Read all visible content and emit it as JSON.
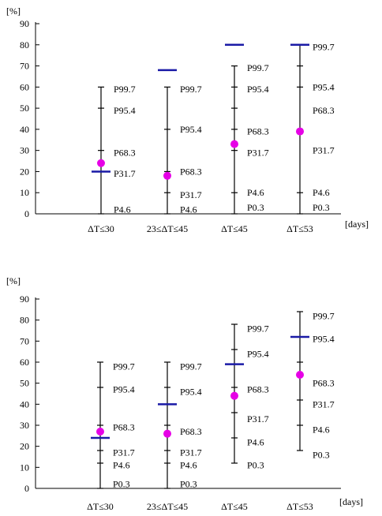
{
  "chart_data": [
    {
      "type": "scatter",
      "title": "",
      "ylabel": "[%]",
      "xlabel": "[days]",
      "ylim": [
        0,
        90
      ],
      "yticks": [
        "0",
        "10",
        "20",
        "30",
        "40",
        "50",
        "60",
        "70",
        "80",
        "90"
      ],
      "categories": [
        "ΔT≤30",
        "23≤ΔT≤45",
        "ΔT≤45",
        "ΔT≤53"
      ],
      "colors": {
        "marker": "#e600e6",
        "threshold": "#1a1aa6",
        "axis": "#000000"
      },
      "groups": [
        {
          "category": "ΔT≤30",
          "point": 24,
          "bar": 20,
          "ticks": [
            0,
            20,
            30,
            50,
            60
          ],
          "labels": [
            {
              "text": "P99.7",
              "y": 59
            },
            {
              "text": "P95.4",
              "y": 49
            },
            {
              "text": "P68.3",
              "y": 29
            },
            {
              "text": "P31.7",
              "y": 19
            },
            {
              "text": "P4.6",
              "y": 2
            }
          ]
        },
        {
          "category": "23≤ΔT≤45",
          "point": 18,
          "bar": 68,
          "ticks": [
            0,
            10,
            20,
            40,
            60
          ],
          "labels": [
            {
              "text": "P99.7",
              "y": 59
            },
            {
              "text": "P95.4",
              "y": 40
            },
            {
              "text": "P68.3",
              "y": 20
            },
            {
              "text": "P31.7",
              "y": 9
            },
            {
              "text": "P4.6",
              "y": 2
            }
          ]
        },
        {
          "category": "ΔT≤45",
          "point": 33,
          "bar": 80,
          "ticks": [
            0,
            10,
            30,
            40,
            50,
            60,
            70
          ],
          "labels": [
            {
              "text": "P99.7",
              "y": 69
            },
            {
              "text": "P95.4",
              "y": 59
            },
            {
              "text": "P68.3",
              "y": 39
            },
            {
              "text": "P31.7",
              "y": 29
            },
            {
              "text": "P4.6",
              "y": 10
            },
            {
              "text": "P0.3",
              "y": 3
            }
          ]
        },
        {
          "category": "ΔT≤53",
          "point": 39,
          "bar": 80,
          "ticks": [
            0,
            10,
            40,
            60,
            70,
            80
          ],
          "labels": [
            {
              "text": "P99.7",
              "y": 79
            },
            {
              "text": "P95.4",
              "y": 60
            },
            {
              "text": "P68.3",
              "y": 49
            },
            {
              "text": "P31.7",
              "y": 30
            },
            {
              "text": "P4.6",
              "y": 10
            },
            {
              "text": "P0.3",
              "y": 3
            }
          ]
        }
      ]
    },
    {
      "type": "scatter",
      "title": "",
      "ylabel": "[%]",
      "xlabel": "[days]",
      "ylim": [
        0,
        90
      ],
      "yticks": [
        "0",
        "10",
        "20",
        "30",
        "40",
        "50",
        "60",
        "70",
        "80",
        "90"
      ],
      "categories": [
        "ΔT≤30",
        "23≤ΔT≤45",
        "ΔT≤45",
        "ΔT≤53"
      ],
      "colors": {
        "marker": "#e600e6",
        "threshold": "#1a1aa6",
        "axis": "#000000"
      },
      "groups": [
        {
          "category": "ΔT≤30",
          "point": 27,
          "bar": 24,
          "ticks": [
            0,
            12,
            18,
            30,
            48,
            60
          ],
          "labels": [
            {
              "text": "P99.7",
              "y": 58
            },
            {
              "text": "P95.4",
              "y": 47
            },
            {
              "text": "P68.3",
              "y": 29
            },
            {
              "text": "P31.7",
              "y": 17
            },
            {
              "text": "P4.6",
              "y": 11
            },
            {
              "text": "P0.3",
              "y": 2
            }
          ]
        },
        {
          "category": "23≤ΔT≤45",
          "point": 26,
          "bar": 40,
          "ticks": [
            0,
            12,
            18,
            30,
            48,
            60
          ],
          "labels": [
            {
              "text": "P99.7",
              "y": 58
            },
            {
              "text": "P95.4",
              "y": 46
            },
            {
              "text": "P68.3",
              "y": 27
            },
            {
              "text": "P31.7",
              "y": 17
            },
            {
              "text": "P4.6",
              "y": 11
            },
            {
              "text": "P0.3",
              "y": 2
            }
          ]
        },
        {
          "category": "ΔT≤45",
          "point": 44,
          "bar": 59,
          "ticks": [
            12,
            24,
            36,
            48,
            66,
            78
          ],
          "labels": [
            {
              "text": "P99.7",
              "y": 76
            },
            {
              "text": "P95.4",
              "y": 64
            },
            {
              "text": "P68.3",
              "y": 47
            },
            {
              "text": "P31.7",
              "y": 33
            },
            {
              "text": "P4.6",
              "y": 22
            },
            {
              "text": "P0.3",
              "y": 11
            }
          ]
        },
        {
          "category": "ΔT≤53",
          "point": 54,
          "bar": 72,
          "ticks": [
            18,
            30,
            42,
            60,
            84
          ],
          "labels": [
            {
              "text": "P99.7",
              "y": 82
            },
            {
              "text": "P95.4",
              "y": 71
            },
            {
              "text": "P68.3",
              "y": 50
            },
            {
              "text": "P31.7",
              "y": 40
            },
            {
              "text": "P4.6",
              "y": 28
            },
            {
              "text": "P0.3",
              "y": 16
            }
          ]
        }
      ]
    }
  ]
}
